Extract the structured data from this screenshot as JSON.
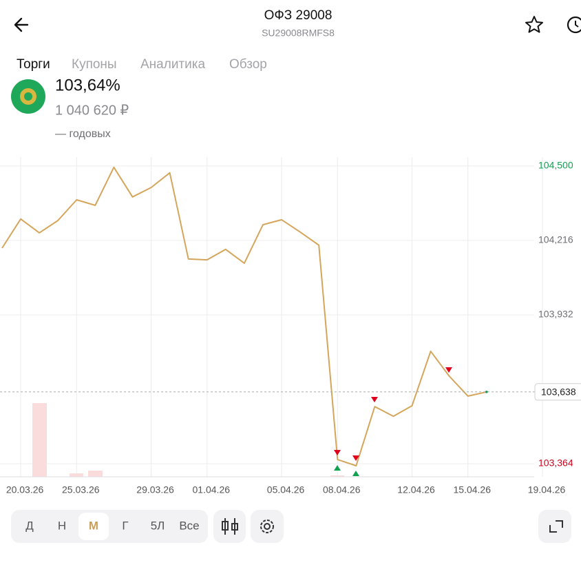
{
  "header": {
    "title": "ОФЗ 29008",
    "subtitle": "SU29008RMFS8"
  },
  "tabs": [
    "Торги",
    "Купоны",
    "Аналитика",
    "Обзор"
  ],
  "price": {
    "percent": "103,64%",
    "amount": "1 040 620 ₽",
    "yield": "— годовых"
  },
  "periods": [
    "Д",
    "Н",
    "М",
    "Г",
    "5Л",
    "Все"
  ],
  "chart_data": {
    "type": "line",
    "categories": [
      null,
      "20.03.26",
      null,
      null,
      "25.03.26",
      null,
      null,
      null,
      "29.03.26",
      null,
      null,
      "01.04.26",
      null,
      null,
      null,
      "05.04.26",
      null,
      null,
      "08.04.26",
      null,
      null,
      null,
      "12.04.26",
      null,
      null,
      "15.04.26",
      null,
      null,
      null,
      "19.04.26"
    ],
    "series": [
      {
        "color": "#d4a55a",
        "values": [
          104.187,
          104.298,
          104.245,
          104.292,
          104.371,
          104.35,
          104.495,
          104.382,
          104.418,
          104.474,
          104.145,
          104.142,
          104.182,
          104.129,
          104.276,
          104.295,
          104.248,
          104.198,
          103.38,
          103.356,
          103.582,
          103.545,
          103.585,
          103.793,
          103.698,
          103.622,
          103.638,
          null,
          null,
          null
        ],
        "value_labels": [
          null,
          null,
          null,
          null,
          null,
          null,
          null,
          null,
          null,
          null,
          null,
          null,
          null,
          null,
          null,
          null,
          null,
          null,
          null,
          null,
          null,
          null,
          null,
          null,
          null,
          null,
          "103,638",
          null,
          null,
          null
        ]
      }
    ],
    "ylim": [
      103.314,
      104.534
    ],
    "yticks": [
      {
        "value": 104.5,
        "label": "104,500"
      },
      {
        "value": 104.216,
        "label": "104,216"
      },
      {
        "value": 103.932,
        "label": "103,932"
      },
      {
        "value": 103.364,
        "label": "103,364"
      }
    ],
    "grid": true
  }
}
